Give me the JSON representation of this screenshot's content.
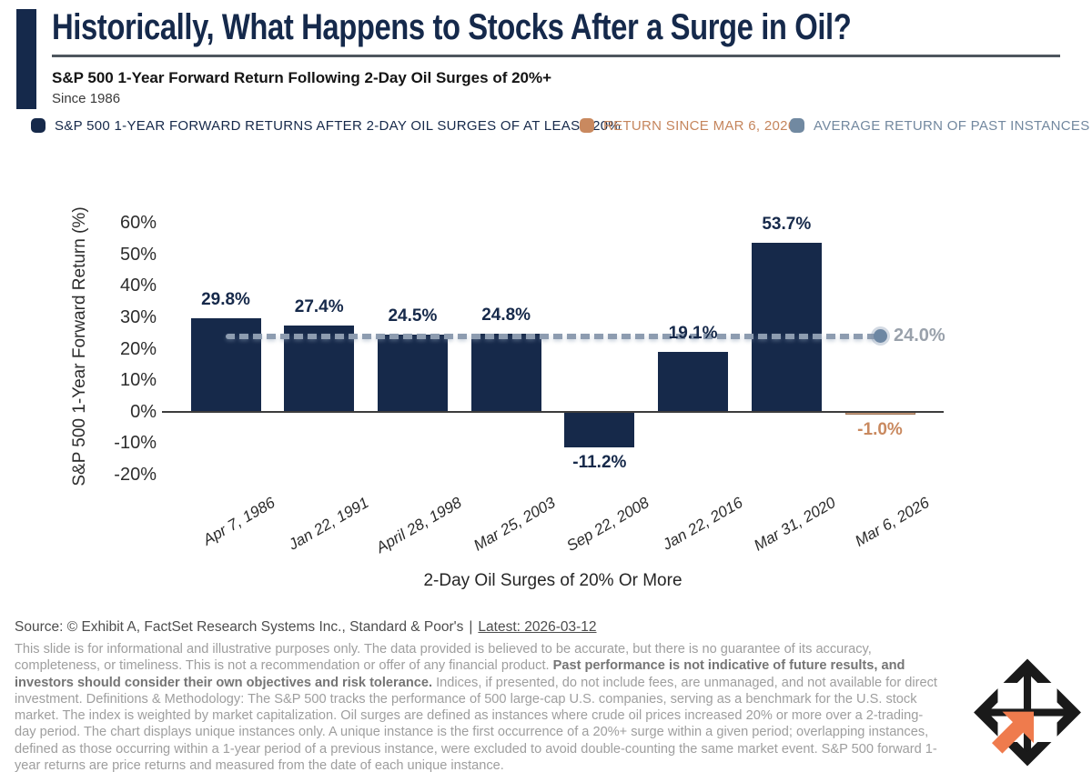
{
  "header": {
    "title": "Historically, What Happens to Stocks After a Surge in Oil?",
    "subtitle": "S&P 500 1-Year Forward Return Following 2-Day Oil Surges of 20%+",
    "since": "Since 1986"
  },
  "legend": {
    "items": [
      {
        "label": "S&P 500 1-YEAR FORWARD RETURNS AFTER 2-DAY OIL SURGES OF AT LEAST 20%",
        "color": "#16294a"
      },
      {
        "label": "RETURN SINCE MAR 6, 2026",
        "color": "#c9895f"
      },
      {
        "label": "AVERAGE RETURN OF PAST INSTANCES",
        "color": "#7189a1"
      }
    ]
  },
  "chart_data": {
    "type": "bar",
    "categories": [
      "Apr 7, 1986",
      "Jan 22, 1991",
      "April 28, 1998",
      "Mar 25, 2003",
      "Sep 22, 2008",
      "Jan 22, 2016",
      "Mar 31, 2020",
      "Mar 6, 2026"
    ],
    "values": [
      29.8,
      27.4,
      24.5,
      24.8,
      -11.2,
      19.1,
      53.7,
      -1.0
    ],
    "labels": [
      "29.8%",
      "27.4%",
      "24.5%",
      "24.8%",
      "-11.2%",
      "19.1%",
      "53.7%",
      "-1.0%"
    ],
    "bar_types": [
      "past",
      "past",
      "past",
      "past",
      "past",
      "past",
      "past",
      "current"
    ],
    "average_line": {
      "value": 24.0,
      "label": "24.0%"
    },
    "title": "",
    "xlabel": "2-Day Oil Surges of 20% Or More",
    "ylabel": "S&P 500 1-Year Forward Return (%)",
    "yticks": [
      "60%",
      "50%",
      "40%",
      "30%",
      "20%",
      "10%",
      "0%",
      "-10%",
      "-20%"
    ],
    "ylim": [
      -20,
      60
    ],
    "grid": false,
    "legend_position": "top",
    "colors": {
      "past_bar": "#16294a",
      "current_bar": "#c79a7c",
      "average_line": "#8d9cb0",
      "average_label": "#99a1ab"
    }
  },
  "footer": {
    "source_prefix": "Source: © Exhibit A, FactSet Research Systems Inc., Standard & Poor's",
    "source_separator": "|",
    "source_latest": "Latest: 2026-03-12",
    "disclaimer_1": "This slide is for informational and illustrative purposes only. The data provided is believed to be accurate, but there is no guarantee of its accuracy, completeness, or timeliness. This is not a recommendation or offer of any financial product. ",
    "disclaimer_bold": "Past performance is not indicative of future results, and investors should consider their own objectives and risk tolerance.",
    "disclaimer_2": " Indices, if presented, do not include fees, are unmanaged, and not available for direct investment. Definitions & Methodology: The S&P 500 tracks the performance of 500 large-cap U.S. companies, serving as a benchmark for the U.S. stock market. The index is weighted by market capitalization. Oil surges are defined as instances where crude oil prices increased 20% or more over a 2-trading-day period. The chart displays unique instances only. A unique instance is the first occurrence of a 20%+ surge within a given period; overlapping instances, defined as those occurring within a 1-year period of a previous instance, were excluded to avoid double-counting the same market event. S&P 500 forward 1-year returns are price returns and measured from the date of each unique instance."
  }
}
